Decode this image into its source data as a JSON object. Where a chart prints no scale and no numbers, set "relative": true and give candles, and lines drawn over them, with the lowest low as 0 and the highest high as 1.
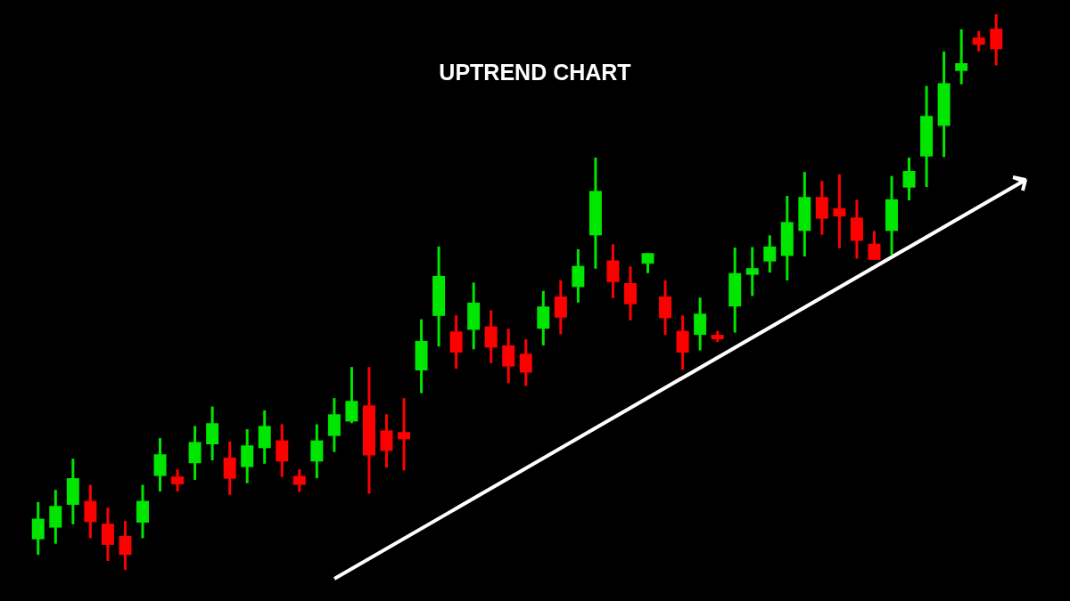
{
  "chart_data": {
    "type": "candlestick",
    "title": "UPTREND CHART",
    "relative": true,
    "tick_labels": false,
    "categories": [
      null,
      null,
      null,
      null,
      null,
      null,
      null,
      null,
      null,
      null,
      null,
      null,
      null,
      null,
      null,
      null,
      null,
      null,
      null,
      null,
      null,
      null,
      null,
      null,
      null,
      null,
      null,
      null,
      null,
      null,
      null,
      null,
      null,
      null,
      null,
      null,
      null,
      null,
      null,
      null,
      null,
      null,
      null,
      null,
      null,
      null,
      null,
      null,
      null,
      null,
      null,
      null,
      null,
      null,
      null,
      null
    ],
    "ohlc": [
      [
        0.055,
        0.122,
        0.027,
        0.092
      ],
      [
        0.076,
        0.144,
        0.047,
        0.115
      ],
      [
        0.117,
        0.2,
        0.082,
        0.165
      ],
      [
        0.124,
        0.153,
        0.057,
        0.086
      ],
      [
        0.083,
        0.112,
        0.016,
        0.045
      ],
      [
        0.061,
        0.088,
        0,
        0.027
      ],
      [
        0.085,
        0.153,
        0.057,
        0.124
      ],
      [
        0.169,
        0.237,
        0.141,
        0.208
      ],
      [
        0.168,
        0.181,
        0.141,
        0.154
      ],
      [
        0.192,
        0.259,
        0.162,
        0.23
      ],
      [
        0.226,
        0.294,
        0.197,
        0.264
      ],
      [
        0.202,
        0.231,
        0.135,
        0.164
      ],
      [
        0.185,
        0.253,
        0.156,
        0.224
      ],
      [
        0.219,
        0.287,
        0.191,
        0.259
      ],
      [
        0.233,
        0.262,
        0.167,
        0.195
      ],
      [
        0.169,
        0.181,
        0.14,
        0.153
      ],
      [
        0.195,
        0.262,
        0.165,
        0.233
      ],
      [
        0.241,
        0.309,
        0.212,
        0.28
      ],
      [
        0.267,
        0.365,
        0.264,
        0.304
      ],
      [
        0.296,
        0.365,
        0.137,
        0.206
      ],
      [
        0.251,
        0.28,
        0.184,
        0.214
      ],
      [
        0.248,
        0.309,
        0.179,
        0.235
      ],
      [
        0.359,
        0.451,
        0.318,
        0.412
      ],
      [
        0.457,
        0.582,
        0.402,
        0.529
      ],
      [
        0.429,
        0.458,
        0.362,
        0.391
      ],
      [
        0.432,
        0.517,
        0.397,
        0.481
      ],
      [
        0.438,
        0.467,
        0.372,
        0.4
      ],
      [
        0.404,
        0.434,
        0.336,
        0.366
      ],
      [
        0.389,
        0.415,
        0.331,
        0.355
      ],
      [
        0.434,
        0.502,
        0.404,
        0.474
      ],
      [
        0.492,
        0.521,
        0.424,
        0.454
      ],
      [
        0.509,
        0.577,
        0.481,
        0.547
      ],
      [
        0.602,
        0.742,
        0.542,
        0.682
      ],
      [
        0.557,
        0.586,
        0.489,
        0.518
      ],
      [
        0.516,
        0.546,
        0.449,
        0.478
      ],
      [
        0.551,
        0.57,
        0.534,
        0.57
      ],
      [
        0.492,
        0.521,
        0.423,
        0.453
      ],
      [
        0.43,
        0.458,
        0.36,
        0.391
      ],
      [
        0.423,
        0.49,
        0.395,
        0.461
      ],
      [
        0.423,
        0.43,
        0.41,
        0.415
      ],
      [
        0.474,
        0.58,
        0.427,
        0.534
      ],
      [
        0.531,
        0.581,
        0.493,
        0.543
      ],
      [
        0.555,
        0.602,
        0.535,
        0.582
      ],
      [
        0.565,
        0.673,
        0.521,
        0.626
      ],
      [
        0.61,
        0.716,
        0.564,
        0.671
      ],
      [
        0.671,
        0.7,
        0.603,
        0.632
      ],
      [
        0.651,
        0.712,
        0.579,
        0.636
      ],
      [
        0.634,
        0.666,
        0.56,
        0.592
      ],
      [
        0.587,
        0.61,
        0.558,
        0.558
      ],
      [
        0.61,
        0.709,
        0.567,
        0.667
      ],
      [
        0.688,
        0.742,
        0.665,
        0.718
      ],
      [
        0.744,
        0.871,
        0.689,
        0.817
      ],
      [
        0.799,
        0.933,
        0.743,
        0.876
      ],
      [
        0.898,
        0.973,
        0.874,
        0.912
      ],
      [
        0.958,
        0.97,
        0.933,
        0.945
      ],
      [
        0.974,
        1,
        0.908,
        0.937
      ]
    ],
    "colors": [
      "#00e600",
      "#00e600",
      "#00e600",
      "#ff0000",
      "#ff0000",
      "#ff0000",
      "#00e600",
      "#00e600",
      "#ff0000",
      "#00e600",
      "#00e600",
      "#ff0000",
      "#00e600",
      "#00e600",
      "#ff0000",
      "#ff0000",
      "#00e600",
      "#00e600",
      "#00e600",
      "#ff0000",
      "#ff0000",
      "#ff0000",
      "#00e600",
      "#00e600",
      "#ff0000",
      "#00e600",
      "#ff0000",
      "#ff0000",
      "#ff0000",
      "#00e600",
      "#ff0000",
      "#00e600",
      "#00e600",
      "#ff0000",
      "#ff0000",
      "#00e600",
      "#ff0000",
      "#ff0000",
      "#00e600",
      "#ff0000",
      "#00e600",
      "#00e600",
      "#00e600",
      "#00e600",
      "#00e600",
      "#ff0000",
      "#ff0000",
      "#ff0000",
      "#ff0000",
      "#00e600",
      "#00e600",
      "#00e600",
      "#00e600",
      "#00e600",
      "#ff0000",
      "#ff0000"
    ]
  }
}
